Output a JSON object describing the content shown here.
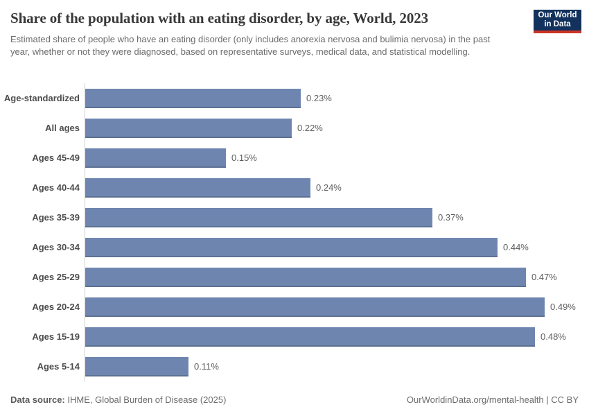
{
  "header": {
    "title": "Share of the population with an eating disorder, by age, World, 2023",
    "subtitle": "Estimated share of people who have an eating disorder (only includes anorexia nervosa and bulimia nervosa) in the past year, whether or not they were diagnosed, based on representative surveys, medical data, and statistical modelling.",
    "logo_line1": "Our World",
    "logo_line2": "in Data"
  },
  "chart_data": {
    "type": "bar",
    "orientation": "horizontal",
    "title": "Share of the population with an eating disorder, by age, World, 2023",
    "categories": [
      "Age-standardized",
      "All ages",
      "Ages 45-49",
      "Ages 40-44",
      "Ages 35-39",
      "Ages 30-34",
      "Ages 25-29",
      "Ages 20-24",
      "Ages 15-19",
      "Ages 5-14"
    ],
    "values": [
      0.23,
      0.22,
      0.15,
      0.24,
      0.37,
      0.44,
      0.47,
      0.49,
      0.48,
      0.11
    ],
    "value_labels": [
      "0.23%",
      "0.22%",
      "0.15%",
      "0.24%",
      "0.37%",
      "0.44%",
      "0.47%",
      "0.49%",
      "0.48%",
      "0.11%"
    ],
    "unit": "%",
    "xlim": [
      0,
      0.49
    ],
    "grid": false,
    "legend": "none",
    "bar_color": "#6e86af"
  },
  "footer": {
    "source_label": "Data source:",
    "source_text": " IHME, Global Burden of Disease (2025)",
    "attribution": "OurWorldinData.org/mental-health | CC BY"
  },
  "colors": {
    "bar": "#6e86af",
    "axis_line": "#cfcfcf",
    "logo_bg": "#12315c",
    "logo_red": "#cc3425",
    "title_text": "#383838",
    "body_text": "#6b6b6b"
  }
}
